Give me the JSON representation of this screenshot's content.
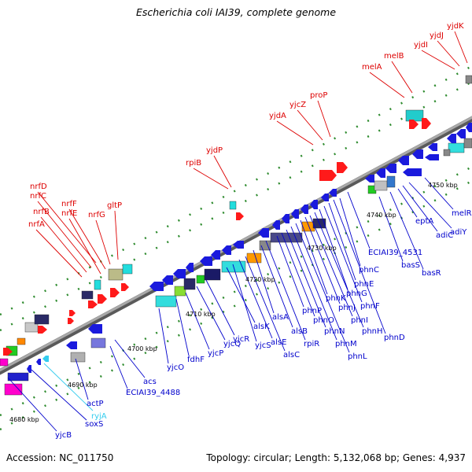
{
  "title": "Escherichia coli IAI39, complete genome",
  "footer": {
    "accession": "Accession: NC_011750",
    "summary": "Topology: circular; Length: 5,132,068 bp; Genes: 4,937"
  },
  "colors": {
    "backbone": "#888888",
    "tick": "#2e8b2e",
    "upper_label": "#dd0000",
    "lower_label": "#0000cc",
    "rna_label": "#33ccee",
    "scale_label": "#000000"
  },
  "scale_labels": [
    "4680 kbp",
    "4690 kbp",
    "4700 kbp",
    "4710 kbp",
    "4720 kbp",
    "4730 kbp",
    "4740 kbp",
    "4750 kbp"
  ],
  "upper_genes": [
    "nrfA",
    "nrfB",
    "nrfC",
    "nrfD",
    "nrfE",
    "nrfF",
    "nrfG",
    "gltP",
    "rpiB",
    "yjdP",
    "yjdA",
    "yjcZ",
    "proP",
    "melA",
    "melB",
    "yjdI",
    "yjdJ",
    "yjdK"
  ],
  "lower_genes": [
    "yjcB",
    "soxS",
    "actP",
    "ECIAI39_4488",
    "acs",
    "yjcO",
    "fdhF",
    "yjcP",
    "yjcQ",
    "yjcR",
    "alsK",
    "yjcS",
    "alsE",
    "alsC",
    "alsA",
    "alsB",
    "rpiR",
    "phnP",
    "phnO",
    "phnN",
    "phnM",
    "phnL",
    "phnK",
    "phnJ",
    "phnI",
    "phnH",
    "phnG",
    "phnF",
    "phnE",
    "phnD",
    "phnC",
    "ECIAI39_4531",
    "basS",
    "basR",
    "eptA",
    "adiC",
    "adiY",
    "melR"
  ],
  "rna_genes": [
    "ryjA"
  ]
}
